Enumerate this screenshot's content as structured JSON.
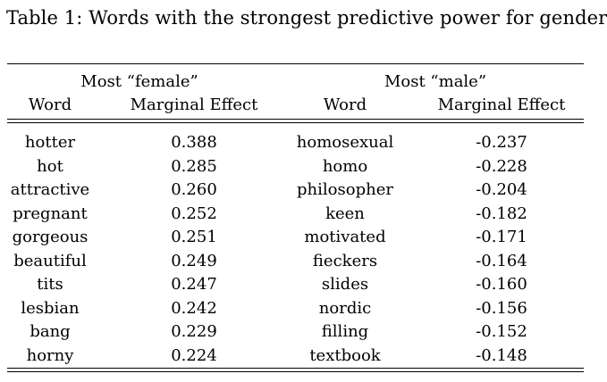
{
  "table": {
    "caption": "Table 1: Words with the strongest predictive power for gender",
    "group_headers": [
      "Most “female”",
      "Most “male”"
    ],
    "column_headers": [
      "Word",
      "Marginal Effect",
      "Word",
      "Marginal Effect"
    ],
    "rows": [
      [
        "hotter",
        "0.388",
        "homosexual",
        "-0.237"
      ],
      [
        "hot",
        "0.285",
        "homo",
        "-0.228"
      ],
      [
        "attractive",
        "0.260",
        "philosopher",
        "-0.204"
      ],
      [
        "pregnant",
        "0.252",
        "keen",
        "-0.182"
      ],
      [
        "gorgeous",
        "0.251",
        "motivated",
        "-0.171"
      ],
      [
        "beautiful",
        "0.249",
        "fieckers",
        "-0.164"
      ],
      [
        "tits",
        "0.247",
        "slides",
        "-0.160"
      ],
      [
        "lesbian",
        "0.242",
        "nordic",
        "-0.156"
      ],
      [
        "bang",
        "0.229",
        "filling",
        "-0.152"
      ],
      [
        "horny",
        "0.224",
        "textbook",
        "-0.148"
      ]
    ]
  }
}
